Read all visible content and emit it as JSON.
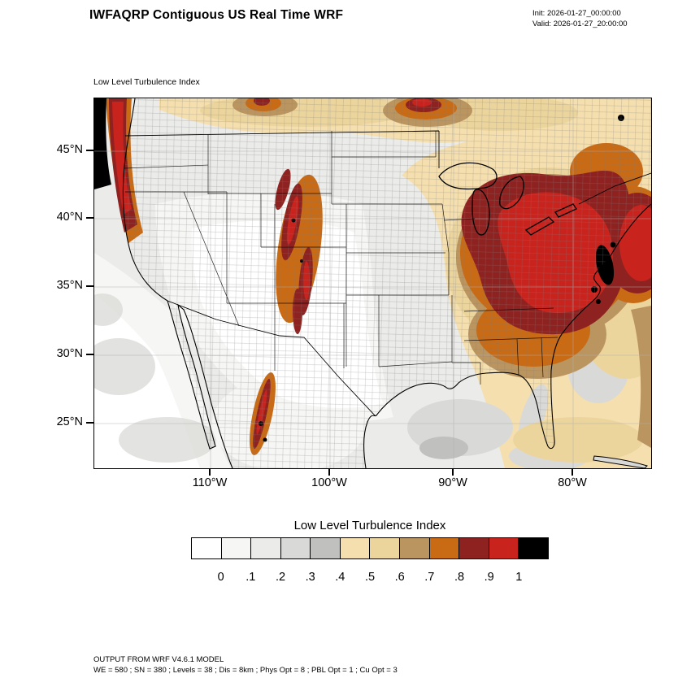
{
  "header": {
    "title": "IWFAQRP Contiguous US Real Time WRF",
    "init": "Init: 2026-01-27_00:00:00",
    "valid": "Valid: 2026-01-27_20:00:00"
  },
  "map": {
    "subtitle": "Low Level Turbulence Index",
    "lat_labels": [
      "45°N",
      "40°N",
      "35°N",
      "30°N",
      "25°N"
    ],
    "lon_labels": [
      "110°W",
      "100°W",
      "90°W",
      "80°W"
    ]
  },
  "colorbar": {
    "title": "Low Level Turbulence Index",
    "tick_labels": [
      "0",
      ".1",
      ".2",
      ".3",
      ".4",
      ".5",
      ".6",
      ".7",
      ".8",
      ".9",
      "1"
    ],
    "colors": [
      "#ffffff",
      "#f6f6f4",
      "#ebebe9",
      "#d9d9d7",
      "#c0c0be",
      "#f5dfae",
      "#ecd59d",
      "#bb9560",
      "#c96a14",
      "#8e2220",
      "#c9231e",
      "#000000"
    ]
  },
  "footer": {
    "line1": "OUTPUT FROM WRF V4.6.1 MODEL",
    "line2": "WE = 580 ; SN = 380 ; Levels = 38 ; Dis = 8km ; Phys Opt = 8 ; PBL Opt = 1 ; Cu Opt = 3"
  },
  "chart_data": {
    "type": "heatmap",
    "title": "Low Level Turbulence Index",
    "figure_title": "IWFAQRP Contiguous US Real Time WRF",
    "init_time": "2026-01-27_00:00:00",
    "valid_time": "2026-01-27_20:00:00",
    "projection": "Lambert conformal map of the contiguous United States with county outlines",
    "x": {
      "label": "Longitude",
      "tick_labels": [
        "110°W",
        "100°W",
        "90°W",
        "80°W"
      ]
    },
    "y": {
      "label": "Latitude",
      "tick_labels": [
        "45°N",
        "40°N",
        "35°N",
        "30°N",
        "25°N"
      ]
    },
    "colorbar_levels": [
      0,
      0.1,
      0.2,
      0.3,
      0.4,
      0.5,
      0.6,
      0.7,
      0.8,
      0.9,
      1
    ],
    "colorbar_colors": [
      "#ffffff",
      "#f6f6f4",
      "#ebebe9",
      "#d9d9d7",
      "#c0c0be",
      "#f5dfae",
      "#ecd59d",
      "#bb9560",
      "#c96a14",
      "#8e2220",
      "#c9231e",
      "#000000"
    ],
    "regions": [
      {
        "area": "Ohio Valley, Great Lakes and Mid-Atlantic",
        "index_range": "0.8-1.0, small black maxima (>1) near the central Appalachians"
      },
      {
        "area": "Western Atlantic offshore of the Northeast coast",
        "index_range": "0.8-1.0"
      },
      {
        "area": "Pacific Northwest coast and offshore (west map edge)",
        "index_range": "0.8-1.0 with black band at the western boundary"
      },
      {
        "area": "Colorado / Wyoming / Utah Rockies",
        "index_range": "0.6-1.0 in narrow terrain-following streaks"
      },
      {
        "area": "Northern plains along the Canadian border",
        "index_range": "0.5-0.9 patches"
      },
      {
        "area": "Southeast US, Gulf of Mexico and Atlantic seaboard",
        "index_range": "0.4-0.7 (tan to brown)"
      },
      {
        "area": "Great Basin, Southwest, central and southern plains, Texas, northern Mexico",
        "index_range": "0.0-0.4 (white to gray)"
      },
      {
        "area": "Sierra Madre of northern Mexico",
        "index_range": "0.7-1.0 narrow streaks"
      }
    ],
    "footnotes": [
      "OUTPUT FROM WRF V4.6.1 MODEL",
      "WE = 580 ; SN = 380 ; Levels = 38 ; Dis = 8km ; Phys Opt = 8 ; PBL Opt = 1 ; Cu Opt = 3"
    ]
  }
}
